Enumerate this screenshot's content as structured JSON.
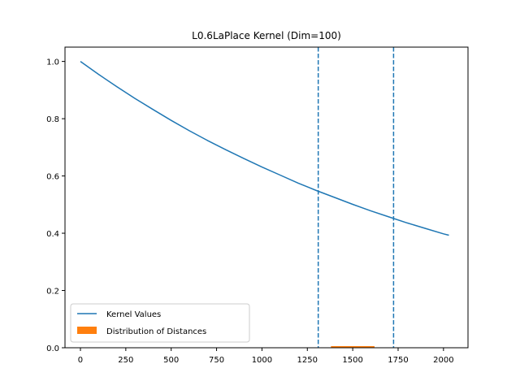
{
  "chart_data": {
    "type": "line",
    "title": "L0.6LaPlace Kernel (Dim=100)",
    "xlabel": "",
    "ylabel": "",
    "xlim": [
      -85,
      2135
    ],
    "ylim": [
      0.0,
      1.05
    ],
    "xticks": [
      0,
      250,
      500,
      750,
      1000,
      1250,
      1500,
      1750,
      2000
    ],
    "yticks": [
      0.0,
      0.2,
      0.4,
      0.6,
      0.8,
      1.0
    ],
    "xtick_labels": [
      "0",
      "250",
      "500",
      "750",
      "1000",
      "1250",
      "1500",
      "1750",
      "2000"
    ],
    "ytick_labels": [
      "0.0",
      "0.2",
      "0.4",
      "0.6",
      "0.8",
      "1.0"
    ],
    "grid": false,
    "legend_position": "lower-left",
    "series": [
      {
        "name": "Kernel Values",
        "type": "line",
        "color": "#1f77b4",
        "x": [
          0,
          100,
          200,
          300,
          400,
          500,
          600,
          700,
          800,
          900,
          1000,
          1100,
          1200,
          1300,
          1400,
          1500,
          1600,
          1700,
          1800,
          1900,
          2000,
          2030
        ],
        "y": [
          1.0,
          0.955,
          0.912,
          0.871,
          0.832,
          0.794,
          0.758,
          0.724,
          0.692,
          0.661,
          0.631,
          0.603,
          0.575,
          0.549,
          0.525,
          0.501,
          0.478,
          0.457,
          0.436,
          0.417,
          0.398,
          0.393
        ]
      },
      {
        "name": "Distribution of Distances",
        "type": "histogram",
        "color": "#ff7f0e",
        "bin_edges": [
          1380,
          1620
        ],
        "values": [
          0.003
        ]
      }
    ],
    "vlines": [
      {
        "x": 1310,
        "color": "#1f77b4",
        "style": "dashed"
      },
      {
        "x": 1725,
        "color": "#1f77b4",
        "style": "dashed"
      }
    ]
  }
}
